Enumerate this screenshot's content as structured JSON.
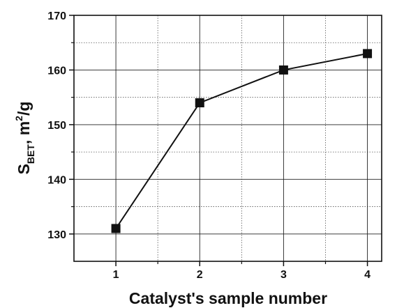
{
  "chart_data": {
    "type": "line",
    "xlabel": "Catalyst's sample number",
    "ylabel": {
      "main": "S",
      "sub": "BET",
      "mid": ", m",
      "sup": "2",
      "end": "/g"
    },
    "x": [
      1,
      2,
      3,
      4
    ],
    "series": [
      {
        "color": "#111111",
        "values": [
          131,
          154,
          160,
          163
        ]
      }
    ],
    "xlim": [
      0.5,
      4.17
    ],
    "xticks": [
      1,
      2,
      3,
      4
    ],
    "xminorticks": [
      1.5,
      2.5,
      3.5
    ],
    "ylim": [
      125,
      170
    ],
    "yticks": [
      130,
      140,
      150,
      160,
      170
    ],
    "yminorticks": [
      135,
      145,
      155,
      165
    ],
    "grid": true
  }
}
